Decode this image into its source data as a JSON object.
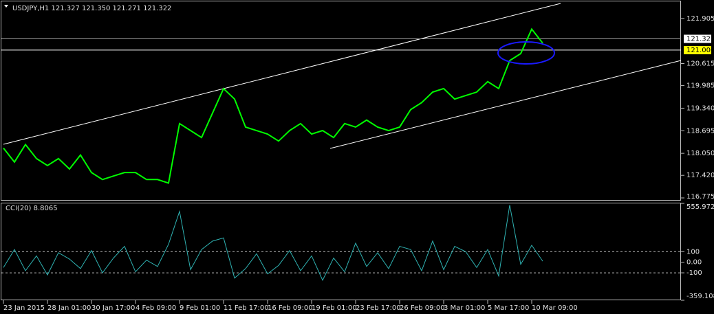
{
  "chart_data": [
    {
      "type": "line",
      "title": "USDJPY,H1  121.327 121.350 121.271 121.322",
      "color": "#00ff00",
      "categories": [
        "23 Jan 2015",
        null,
        null,
        null,
        "28 Jan 01:00",
        null,
        null,
        null,
        "30 Jan 17:00",
        null,
        null,
        null,
        "4 Feb 09:00",
        null,
        null,
        null,
        "9 Feb 01:00",
        null,
        null,
        null,
        "11 Feb 17:00",
        null,
        null,
        null,
        "16 Feb 09:00",
        null,
        null,
        null,
        "19 Feb 01:00",
        null,
        null,
        null,
        "23 Feb 17:00",
        null,
        null,
        null,
        "26 Feb 09:00",
        null,
        null,
        null,
        "3 Mar 01:00",
        null,
        null,
        null,
        "5 Mar 17:00",
        null,
        null,
        null,
        "10 Mar 09:00",
        null
      ],
      "values": [
        118.2,
        117.8,
        118.3,
        117.9,
        117.7,
        117.9,
        117.6,
        118.0,
        117.5,
        117.3,
        117.4,
        117.5,
        117.5,
        117.3,
        117.3,
        117.2,
        118.9,
        118.7,
        118.5,
        119.2,
        119.9,
        119.6,
        118.8,
        118.7,
        118.6,
        118.4,
        118.7,
        118.9,
        118.6,
        118.7,
        118.5,
        118.9,
        118.8,
        119.0,
        118.8,
        118.7,
        118.8,
        119.3,
        119.5,
        119.8,
        119.9,
        119.6,
        119.7,
        119.8,
        120.1,
        119.9,
        120.7,
        120.9,
        121.6,
        121.2
      ],
      "ylim": [
        116.697,
        122.393
      ],
      "yticks": [
        121.905,
        120.615,
        119.985,
        {
          "value": 119.34,
          "label": "119.340"
        },
        118.695,
        {
          "value": 118.05,
          "label": "118.050"
        },
        {
          "value": 117.42,
          "label": "117.420"
        },
        116.775
      ],
      "levels": [
        121.322,
        {
          "value": 121,
          "label": "121.000"
        }
      ]
    },
    {
      "type": "line",
      "title": "CCI(20) 8.8065",
      "color": "#2fb3b3",
      "values": [
        -50,
        120,
        -80,
        60,
        -120,
        90,
        30,
        -60,
        110,
        -100,
        40,
        150,
        -90,
        20,
        -40,
        170,
        480,
        -70,
        120,
        200,
        230,
        -150,
        -60,
        80,
        -110,
        -30,
        110,
        -80,
        60,
        -170,
        40,
        -90,
        180,
        -40,
        90,
        -60,
        150,
        120,
        -80,
        200,
        -70,
        150,
        100,
        -50,
        120,
        -130,
        540,
        -20,
        160,
        10
      ],
      "ylim": [
        -359.108,
        555.972
      ],
      "yticks": [
        555.972,
        100,
        {
          "value": 0,
          "label": "0.00"
        },
        -100,
        -359.108
      ],
      "levels": [
        100,
        -100
      ]
    }
  ]
}
